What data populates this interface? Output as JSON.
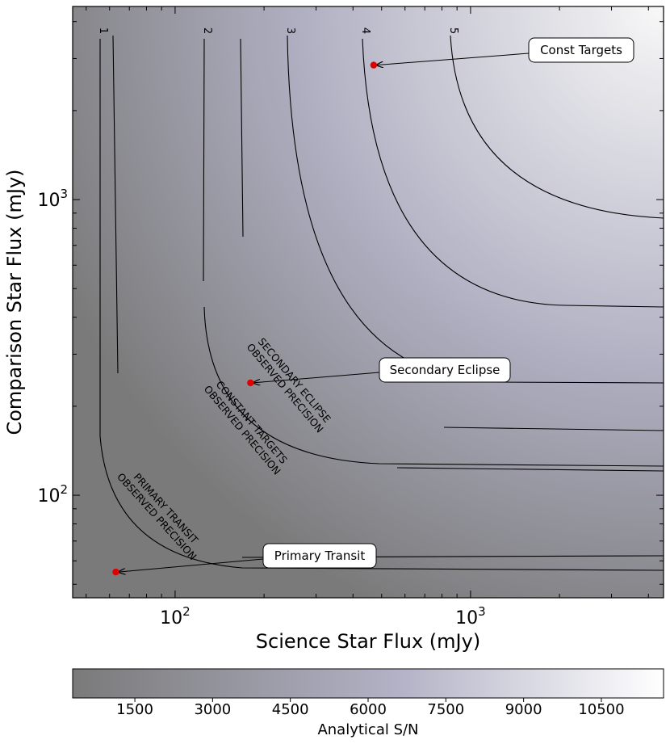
{
  "chart_data": {
    "type": "heatmap",
    "xlabel": "Science Star Flux (mJy)",
    "ylabel": "Comparison Star Flux (mJy)",
    "xscale": "log",
    "yscale": "log",
    "xlim": [
      45,
      4500
    ],
    "ylim": [
      45,
      4500
    ],
    "xticks": [
      {
        "value": 100,
        "base": "10",
        "exp": "2"
      },
      {
        "value": 1000,
        "base": "10",
        "exp": "3"
      }
    ],
    "yticks": [
      {
        "value": 100,
        "base": "10",
        "exp": "2"
      },
      {
        "value": 1000,
        "base": "10",
        "exp": "3"
      }
    ],
    "colorbar": {
      "label": "Analytical S/N",
      "ticks": [
        "1500",
        "3000",
        "4500",
        "6000",
        "7500",
        "9000",
        "10500"
      ],
      "range": [
        300,
        11700
      ],
      "low_color": "#7a7a7a",
      "mid_color": "#b3b2c6",
      "high_color": "#ffffff"
    },
    "contour_levels": [
      "1",
      "2",
      "3",
      "4",
      "5"
    ],
    "points": [
      {
        "name": "Const Targets",
        "x": 470,
        "y": 2850
      },
      {
        "name": "Secondary Eclipse",
        "x": 180,
        "y": 240
      },
      {
        "name": "Primary Transit",
        "x": 63,
        "y": 55
      }
    ],
    "precision_labels": [
      {
        "lines": [
          "SECONDARY ECLIPSE",
          "OBSERVED PRECISION"
        ]
      },
      {
        "lines": [
          "CONSTANT TARGETS",
          "OBSERVED PRECISION"
        ]
      },
      {
        "lines": [
          "PRIMARY TRANSIT",
          "OBSERVED PRECISION"
        ]
      }
    ],
    "point_color": "#e00000"
  }
}
